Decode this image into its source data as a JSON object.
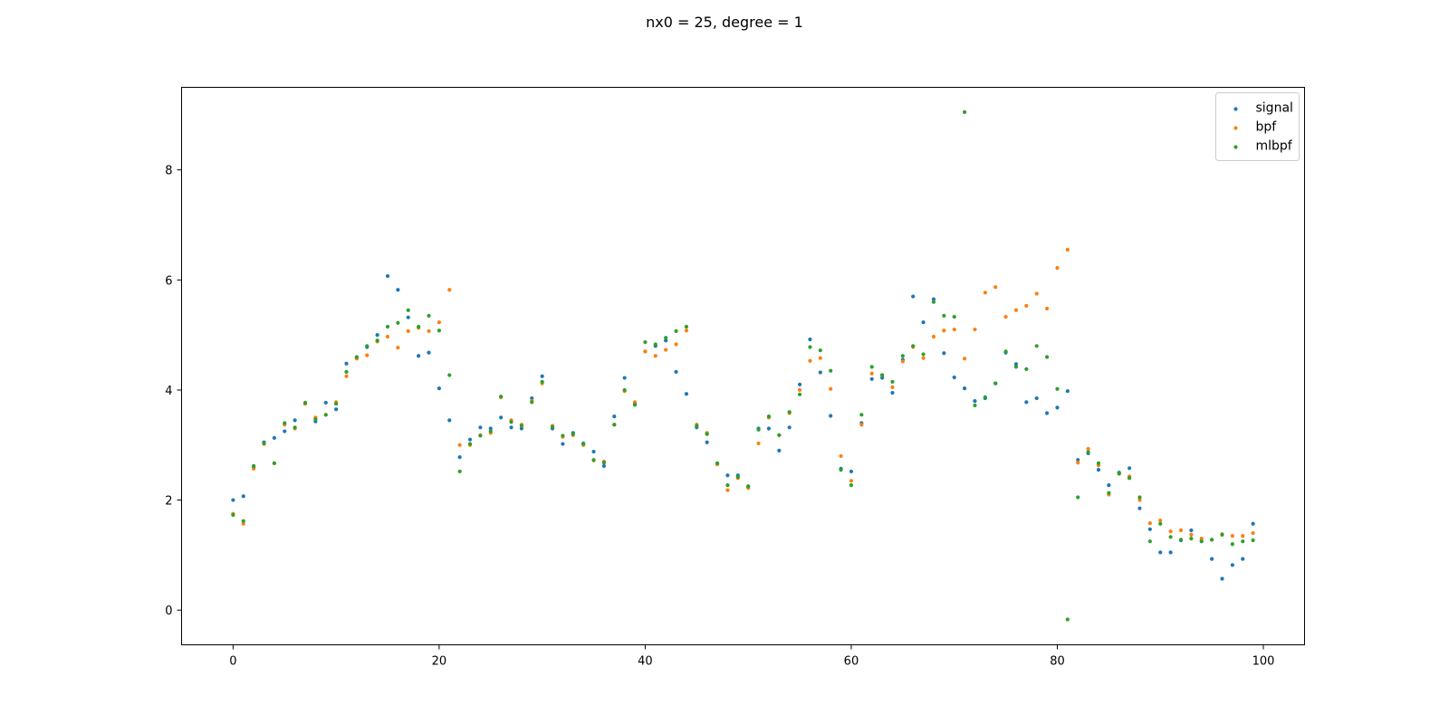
{
  "chart_data": {
    "type": "scatter",
    "title": "nx0 = 25, degree = 1",
    "xlabel": "",
    "ylabel": "",
    "xlim": [
      -5,
      104
    ],
    "ylim": [
      -0.63,
      9.5
    ],
    "xticks": [
      0,
      20,
      40,
      60,
      80,
      100
    ],
    "yticks": [
      0,
      2,
      4,
      6,
      8
    ],
    "grid": false,
    "legend_position": "top-right",
    "x": [
      0,
      1,
      2,
      3,
      4,
      5,
      6,
      7,
      8,
      9,
      10,
      11,
      12,
      13,
      14,
      15,
      16,
      17,
      18,
      19,
      20,
      21,
      22,
      23,
      24,
      25,
      26,
      27,
      28,
      29,
      30,
      31,
      32,
      33,
      34,
      35,
      36,
      37,
      38,
      39,
      40,
      41,
      42,
      43,
      44,
      45,
      46,
      47,
      48,
      49,
      50,
      51,
      52,
      53,
      54,
      55,
      56,
      57,
      58,
      59,
      60,
      61,
      62,
      63,
      64,
      65,
      66,
      67,
      68,
      69,
      70,
      71,
      72,
      73,
      74,
      75,
      76,
      77,
      78,
      79,
      80,
      81,
      82,
      83,
      84,
      85,
      86,
      87,
      88,
      89,
      90,
      91,
      92,
      93,
      94,
      95,
      96,
      97,
      98,
      99
    ],
    "series": [
      {
        "name": "signal",
        "color": "#1f77b4",
        "values": [
          2.0,
          2.07,
          2.6,
          3.05,
          3.13,
          3.25,
          3.45,
          3.75,
          3.43,
          3.77,
          3.65,
          4.48,
          4.58,
          4.78,
          5.0,
          6.07,
          5.82,
          5.32,
          4.62,
          4.68,
          4.03,
          3.45,
          2.78,
          3.1,
          3.32,
          3.3,
          3.5,
          3.32,
          3.3,
          3.85,
          4.25,
          3.3,
          3.02,
          3.22,
          3.03,
          2.88,
          2.62,
          3.52,
          4.22,
          3.75,
          4.7,
          4.8,
          4.9,
          4.33,
          3.93,
          3.32,
          3.05,
          2.65,
          2.45,
          2.45,
          2.25,
          3.3,
          3.3,
          2.9,
          3.32,
          4.1,
          4.92,
          4.32,
          3.53,
          2.57,
          2.52,
          3.4,
          4.2,
          4.22,
          3.95,
          4.55,
          5.7,
          5.23,
          5.65,
          4.67,
          4.23,
          4.03,
          3.8,
          3.85,
          4.12,
          4.68,
          4.47,
          3.78,
          3.85,
          3.58,
          3.68,
          3.98,
          2.73,
          2.85,
          2.55,
          2.27,
          2.5,
          2.58,
          1.85,
          1.47,
          1.05,
          1.05,
          1.27,
          1.45,
          1.25,
          0.93,
          0.57,
          0.82,
          0.93,
          1.57
        ]
      },
      {
        "name": "bpf",
        "color": "#ff7f0e",
        "values": [
          1.75,
          1.57,
          2.57,
          3.02,
          2.67,
          3.37,
          3.3,
          3.75,
          3.5,
          3.55,
          3.78,
          4.25,
          4.57,
          4.63,
          4.88,
          4.97,
          4.77,
          5.07,
          5.13,
          5.07,
          5.23,
          5.82,
          3.0,
          3.0,
          3.18,
          3.22,
          3.87,
          3.45,
          3.37,
          3.8,
          4.12,
          3.35,
          3.15,
          3.18,
          3.0,
          2.72,
          2.7,
          3.37,
          3.98,
          3.78,
          4.7,
          4.62,
          4.73,
          4.83,
          5.08,
          3.37,
          3.22,
          2.65,
          2.18,
          2.4,
          2.22,
          3.03,
          3.5,
          3.18,
          3.58,
          4.0,
          4.53,
          4.58,
          4.02,
          2.8,
          2.35,
          3.37,
          4.3,
          4.27,
          4.05,
          4.52,
          4.78,
          4.58,
          4.97,
          5.08,
          5.1,
          4.57,
          5.1,
          5.77,
          5.87,
          5.33,
          5.45,
          5.53,
          5.75,
          5.48,
          6.22,
          6.55,
          2.68,
          2.93,
          2.63,
          2.1,
          2.48,
          2.43,
          2.0,
          1.58,
          1.63,
          1.43,
          1.45,
          1.37,
          1.3,
          1.28,
          1.38,
          1.35,
          1.35,
          1.4
        ]
      },
      {
        "name": "mlbpf",
        "color": "#2ca02c",
        "values": [
          1.73,
          1.62,
          2.62,
          3.03,
          2.67,
          3.4,
          3.32,
          3.77,
          3.47,
          3.55,
          3.75,
          4.33,
          4.6,
          4.8,
          4.9,
          5.15,
          5.22,
          5.45,
          5.15,
          5.35,
          5.08,
          4.27,
          2.52,
          3.02,
          3.17,
          3.25,
          3.88,
          3.42,
          3.35,
          3.78,
          4.15,
          3.33,
          3.17,
          3.2,
          3.02,
          2.73,
          2.68,
          3.37,
          4.0,
          3.73,
          4.87,
          4.83,
          4.95,
          5.07,
          5.15,
          3.35,
          3.2,
          2.67,
          2.27,
          2.42,
          2.25,
          3.28,
          3.52,
          3.18,
          3.6,
          3.92,
          4.78,
          4.72,
          4.35,
          2.55,
          2.27,
          3.55,
          4.42,
          4.27,
          4.15,
          4.62,
          4.8,
          4.65,
          5.6,
          5.35,
          5.33,
          9.05,
          3.72,
          3.87,
          4.12,
          4.7,
          4.42,
          4.38,
          4.8,
          4.6,
          4.02,
          -0.17,
          2.05,
          2.87,
          2.67,
          2.13,
          2.48,
          2.4,
          2.05,
          1.25,
          1.57,
          1.33,
          1.28,
          1.3,
          1.25,
          1.28,
          1.37,
          1.2,
          1.25,
          1.27
        ]
      }
    ]
  }
}
